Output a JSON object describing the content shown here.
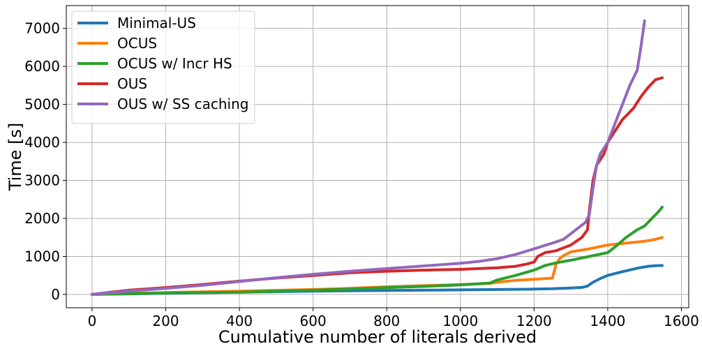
{
  "chart_data": {
    "type": "line",
    "title": "",
    "xlabel": "Cumulative number of literals derived",
    "ylabel": "Time [s]",
    "xlim": [
      -70,
      1620
    ],
    "ylim": [
      -350,
      7600
    ],
    "xticks": [
      0,
      200,
      400,
      600,
      800,
      1000,
      1200,
      1400,
      1600
    ],
    "yticks": [
      0,
      1000,
      2000,
      3000,
      4000,
      5000,
      6000,
      7000
    ],
    "grid": true,
    "legend_position": "top-left",
    "series": [
      {
        "name": "Minimal-US",
        "color": "#1f77b4",
        "points": [
          [
            0,
            0
          ],
          [
            100,
            15
          ],
          [
            200,
            30
          ],
          [
            400,
            60
          ],
          [
            600,
            85
          ],
          [
            800,
            105
          ],
          [
            1000,
            120
          ],
          [
            1100,
            130
          ],
          [
            1200,
            140
          ],
          [
            1250,
            150
          ],
          [
            1300,
            170
          ],
          [
            1330,
            185
          ],
          [
            1345,
            220
          ],
          [
            1360,
            320
          ],
          [
            1380,
            420
          ],
          [
            1400,
            500
          ],
          [
            1440,
            600
          ],
          [
            1480,
            690
          ],
          [
            1510,
            740
          ],
          [
            1530,
            758
          ],
          [
            1548,
            760
          ]
        ]
      },
      {
        "name": "OCUS",
        "color": "#ff7f0e",
        "points": [
          [
            0,
            0
          ],
          [
            100,
            30
          ],
          [
            200,
            50
          ],
          [
            400,
            85
          ],
          [
            600,
            130
          ],
          [
            700,
            160
          ],
          [
            800,
            200
          ],
          [
            900,
            230
          ],
          [
            1000,
            260
          ],
          [
            1080,
            290
          ],
          [
            1100,
            320
          ],
          [
            1150,
            370
          ],
          [
            1200,
            400
          ],
          [
            1250,
            430
          ],
          [
            1260,
            800
          ],
          [
            1270,
            950
          ],
          [
            1280,
            1020
          ],
          [
            1300,
            1120
          ],
          [
            1350,
            1200
          ],
          [
            1400,
            1300
          ],
          [
            1450,
            1350
          ],
          [
            1500,
            1400
          ],
          [
            1530,
            1450
          ],
          [
            1548,
            1500
          ]
        ]
      },
      {
        "name": "OCUS w/ Incr HS",
        "color": "#2ca02c",
        "points": [
          [
            0,
            0
          ],
          [
            100,
            20
          ],
          [
            200,
            35
          ],
          [
            400,
            60
          ],
          [
            600,
            110
          ],
          [
            700,
            140
          ],
          [
            800,
            180
          ],
          [
            900,
            210
          ],
          [
            1000,
            250
          ],
          [
            1080,
            300
          ],
          [
            1100,
            380
          ],
          [
            1150,
            500
          ],
          [
            1200,
            640
          ],
          [
            1230,
            760
          ],
          [
            1260,
            830
          ],
          [
            1300,
            900
          ],
          [
            1350,
            1000
          ],
          [
            1400,
            1100
          ],
          [
            1420,
            1250
          ],
          [
            1450,
            1500
          ],
          [
            1480,
            1700
          ],
          [
            1500,
            1800
          ],
          [
            1520,
            2000
          ],
          [
            1540,
            2200
          ],
          [
            1548,
            2300
          ]
        ]
      },
      {
        "name": "OUS",
        "color": "#d62728",
        "points": [
          [
            0,
            0
          ],
          [
            50,
            60
          ],
          [
            100,
            110
          ],
          [
            200,
            180
          ],
          [
            300,
            260
          ],
          [
            400,
            350
          ],
          [
            500,
            430
          ],
          [
            600,
            500
          ],
          [
            700,
            570
          ],
          [
            800,
            610
          ],
          [
            900,
            640
          ],
          [
            1000,
            660
          ],
          [
            1100,
            700
          ],
          [
            1150,
            740
          ],
          [
            1180,
            800
          ],
          [
            1200,
            850
          ],
          [
            1210,
            1000
          ],
          [
            1230,
            1100
          ],
          [
            1260,
            1150
          ],
          [
            1300,
            1300
          ],
          [
            1330,
            1500
          ],
          [
            1345,
            1700
          ],
          [
            1350,
            2200
          ],
          [
            1360,
            3000
          ],
          [
            1370,
            3400
          ],
          [
            1390,
            3700
          ],
          [
            1400,
            4000
          ],
          [
            1420,
            4300
          ],
          [
            1440,
            4600
          ],
          [
            1470,
            4900
          ],
          [
            1490,
            5200
          ],
          [
            1510,
            5450
          ],
          [
            1530,
            5650
          ],
          [
            1548,
            5700
          ]
        ]
      },
      {
        "name": "OUS w/ SS caching",
        "color": "#9467bd",
        "points": [
          [
            0,
            0
          ],
          [
            50,
            50
          ],
          [
            100,
            90
          ],
          [
            200,
            160
          ],
          [
            300,
            240
          ],
          [
            400,
            340
          ],
          [
            500,
            440
          ],
          [
            600,
            530
          ],
          [
            700,
            610
          ],
          [
            800,
            680
          ],
          [
            900,
            750
          ],
          [
            1000,
            820
          ],
          [
            1050,
            870
          ],
          [
            1100,
            940
          ],
          [
            1150,
            1050
          ],
          [
            1200,
            1200
          ],
          [
            1250,
            1350
          ],
          [
            1280,
            1450
          ],
          [
            1300,
            1600
          ],
          [
            1320,
            1750
          ],
          [
            1340,
            1900
          ],
          [
            1350,
            2100
          ],
          [
            1360,
            2800
          ],
          [
            1370,
            3400
          ],
          [
            1380,
            3700
          ],
          [
            1400,
            4000
          ],
          [
            1420,
            4500
          ],
          [
            1440,
            5000
          ],
          [
            1460,
            5500
          ],
          [
            1480,
            5900
          ],
          [
            1490,
            6500
          ],
          [
            1500,
            7200
          ]
        ]
      }
    ]
  }
}
